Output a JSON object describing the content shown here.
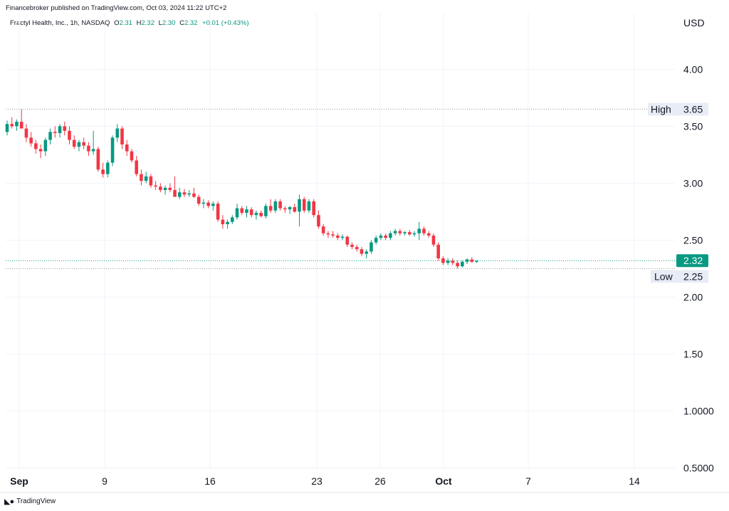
{
  "header": {
    "publisher_line": "Financebroker published on TradingView.com, Oct 03, 2024 11:22 UTC+2",
    "symbol": "Fractyl Health, Inc., 1h, NASDAQ",
    "ohlc": {
      "o_label": "O",
      "o_value": "2.31",
      "h_label": "H",
      "h_value": "2.32",
      "l_label": "L",
      "l_value": "2.30",
      "c_label": "C",
      "c_value": "2.32",
      "change": "+0.01 (+0.43%)"
    }
  },
  "footer": {
    "logo_text": "TradingView",
    "logo_icon": "tradingview-logo-icon"
  },
  "colors": {
    "up": "#089981",
    "down": "#f23645",
    "grid": "#f0f3fa",
    "tag_bg": "#e8ecf5",
    "price_tag": "#089981"
  },
  "chart_data": {
    "type": "candlestick",
    "currency_label": "USD",
    "y_range": [
      0.5,
      4.6
    ],
    "y_ticks": [
      {
        "value": 4.0,
        "label": "4.00"
      },
      {
        "value": 3.5,
        "label": "3.50"
      },
      {
        "value": 3.0,
        "label": "3.00"
      },
      {
        "value": 2.5,
        "label": "2.50"
      },
      {
        "value": 2.0,
        "label": "2.00"
      },
      {
        "value": 1.5,
        "label": "1.50"
      },
      {
        "value": 1.0,
        "label": "1.0000"
      },
      {
        "value": 0.5,
        "label": "0.5000"
      }
    ],
    "x_ticks": [
      {
        "label": "Sep",
        "bold": true
      },
      {
        "label": "9",
        "bold": false
      },
      {
        "label": "16",
        "bold": false
      },
      {
        "label": "23",
        "bold": false
      },
      {
        "label": "26",
        "bold": false
      },
      {
        "label": "Oct",
        "bold": true
      },
      {
        "label": "7",
        "bold": false
      },
      {
        "label": "14",
        "bold": false
      }
    ],
    "high": {
      "label": "High",
      "value": 3.65,
      "text": "3.65"
    },
    "low": {
      "label": "Low",
      "value": 2.25,
      "text": "2.25"
    },
    "last_price": {
      "value": 2.32,
      "text": "2.32"
    },
    "grid": true,
    "candles": [
      [
        3.45,
        3.55,
        3.42,
        3.52
      ],
      [
        3.52,
        3.58,
        3.48,
        3.5
      ],
      [
        3.5,
        3.56,
        3.46,
        3.54
      ],
      [
        3.54,
        3.65,
        3.5,
        3.48
      ],
      [
        3.48,
        3.52,
        3.36,
        3.4
      ],
      [
        3.4,
        3.45,
        3.32,
        3.35
      ],
      [
        3.35,
        3.38,
        3.26,
        3.3
      ],
      [
        3.3,
        3.34,
        3.22,
        3.28
      ],
      [
        3.28,
        3.4,
        3.24,
        3.38
      ],
      [
        3.38,
        3.48,
        3.34,
        3.45
      ],
      [
        3.45,
        3.5,
        3.4,
        3.44
      ],
      [
        3.44,
        3.52,
        3.4,
        3.5
      ],
      [
        3.5,
        3.54,
        3.42,
        3.46
      ],
      [
        3.46,
        3.5,
        3.34,
        3.38
      ],
      [
        3.38,
        3.42,
        3.3,
        3.32
      ],
      [
        3.32,
        3.38,
        3.28,
        3.36
      ],
      [
        3.36,
        3.4,
        3.3,
        3.33
      ],
      [
        3.33,
        3.36,
        3.24,
        3.28
      ],
      [
        3.28,
        3.46,
        3.25,
        3.3
      ],
      [
        3.3,
        3.32,
        3.1,
        3.12
      ],
      [
        3.12,
        3.18,
        3.05,
        3.08
      ],
      [
        3.08,
        3.2,
        3.05,
        3.18
      ],
      [
        3.18,
        3.42,
        3.15,
        3.4
      ],
      [
        3.4,
        3.52,
        3.36,
        3.48
      ],
      [
        3.48,
        3.5,
        3.3,
        3.34
      ],
      [
        3.34,
        3.38,
        3.24,
        3.28
      ],
      [
        3.28,
        3.3,
        3.18,
        3.2
      ],
      [
        3.2,
        3.24,
        3.06,
        3.08
      ],
      [
        3.08,
        3.12,
        2.98,
        3.02
      ],
      [
        3.02,
        3.1,
        3.0,
        3.06
      ],
      [
        3.06,
        3.08,
        2.96,
        2.98
      ],
      [
        2.98,
        3.02,
        2.94,
        2.97
      ],
      [
        2.97,
        3.0,
        2.92,
        2.94
      ],
      [
        2.94,
        2.98,
        2.9,
        2.96
      ],
      [
        2.96,
        3.0,
        2.92,
        2.94
      ],
      [
        2.94,
        3.06,
        2.9,
        2.88
      ],
      [
        2.88,
        2.96,
        2.86,
        2.92
      ],
      [
        2.92,
        2.95,
        2.88,
        2.9
      ],
      [
        2.9,
        2.94,
        2.88,
        2.91
      ],
      [
        2.91,
        2.96,
        2.87,
        2.88
      ],
      [
        2.88,
        2.9,
        2.8,
        2.82
      ],
      [
        2.82,
        2.86,
        2.78,
        2.83
      ],
      [
        2.83,
        2.85,
        2.78,
        2.8
      ],
      [
        2.8,
        2.84,
        2.76,
        2.82
      ],
      [
        2.82,
        2.84,
        2.66,
        2.68
      ],
      [
        2.68,
        2.72,
        2.6,
        2.64
      ],
      [
        2.64,
        2.68,
        2.6,
        2.66
      ],
      [
        2.66,
        2.72,
        2.64,
        2.7
      ],
      [
        2.7,
        2.82,
        2.68,
        2.78
      ],
      [
        2.78,
        2.8,
        2.72,
        2.74
      ],
      [
        2.74,
        2.8,
        2.7,
        2.77
      ],
      [
        2.77,
        2.79,
        2.7,
        2.72
      ],
      [
        2.72,
        2.76,
        2.68,
        2.74
      ],
      [
        2.74,
        2.76,
        2.7,
        2.71
      ],
      [
        2.71,
        2.82,
        2.69,
        2.8
      ],
      [
        2.8,
        2.86,
        2.74,
        2.76
      ],
      [
        2.76,
        2.86,
        2.74,
        2.84
      ],
      [
        2.84,
        2.86,
        2.76,
        2.78
      ],
      [
        2.78,
        2.8,
        2.74,
        2.77
      ],
      [
        2.77,
        2.8,
        2.73,
        2.79
      ],
      [
        2.79,
        2.82,
        2.74,
        2.75
      ],
      [
        2.75,
        2.9,
        2.62,
        2.86
      ],
      [
        2.86,
        2.88,
        2.74,
        2.76
      ],
      [
        2.76,
        2.86,
        2.74,
        2.84
      ],
      [
        2.84,
        2.86,
        2.7,
        2.72
      ],
      [
        2.72,
        2.76,
        2.6,
        2.62
      ],
      [
        2.62,
        2.64,
        2.54,
        2.56
      ],
      [
        2.56,
        2.58,
        2.52,
        2.55
      ],
      [
        2.55,
        2.58,
        2.52,
        2.54
      ],
      [
        2.54,
        2.56,
        2.5,
        2.52
      ],
      [
        2.52,
        2.55,
        2.5,
        2.53
      ],
      [
        2.53,
        2.54,
        2.44,
        2.46
      ],
      [
        2.46,
        2.48,
        2.42,
        2.44
      ],
      [
        2.44,
        2.46,
        2.4,
        2.42
      ],
      [
        2.42,
        2.44,
        2.36,
        2.38
      ],
      [
        2.38,
        2.42,
        2.34,
        2.4
      ],
      [
        2.4,
        2.5,
        2.38,
        2.48
      ],
      [
        2.48,
        2.54,
        2.46,
        2.52
      ],
      [
        2.52,
        2.56,
        2.5,
        2.54
      ],
      [
        2.54,
        2.56,
        2.5,
        2.52
      ],
      [
        2.52,
        2.58,
        2.5,
        2.56
      ],
      [
        2.56,
        2.6,
        2.54,
        2.58
      ],
      [
        2.58,
        2.6,
        2.54,
        2.56
      ],
      [
        2.56,
        2.58,
        2.54,
        2.57
      ],
      [
        2.57,
        2.59,
        2.54,
        2.55
      ],
      [
        2.55,
        2.58,
        2.53,
        2.56
      ],
      [
        2.56,
        2.66,
        2.5,
        2.6
      ],
      [
        2.6,
        2.62,
        2.54,
        2.56
      ],
      [
        2.56,
        2.58,
        2.52,
        2.54
      ],
      [
        2.54,
        2.56,
        2.44,
        2.46
      ],
      [
        2.46,
        2.48,
        2.32,
        2.34
      ],
      [
        2.34,
        2.36,
        2.28,
        2.3
      ],
      [
        2.3,
        2.34,
        2.28,
        2.32
      ],
      [
        2.32,
        2.34,
        2.28,
        2.3
      ],
      [
        2.3,
        2.32,
        2.25,
        2.27
      ],
      [
        2.27,
        2.32,
        2.26,
        2.31
      ],
      [
        2.31,
        2.34,
        2.29,
        2.33
      ],
      [
        2.33,
        2.35,
        2.3,
        2.31
      ],
      [
        2.31,
        2.32,
        2.3,
        2.32
      ]
    ]
  }
}
